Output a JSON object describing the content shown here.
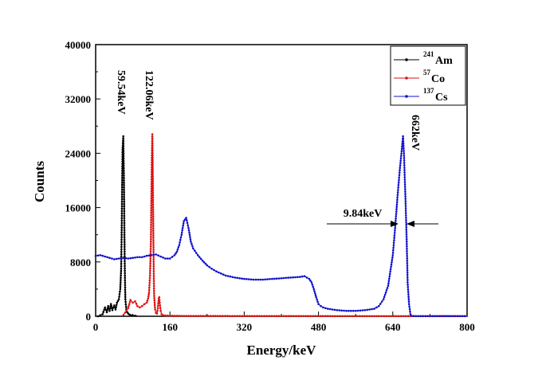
{
  "chart_data": {
    "type": "line",
    "xlabel": "Energy/keV",
    "ylabel": "Counts",
    "xlim": [
      0,
      800
    ],
    "ylim": [
      0,
      40000
    ],
    "xticks": [
      "0",
      "160",
      "320",
      "480",
      "640",
      "800"
    ],
    "yticks": [
      "0",
      "8000",
      "16000",
      "24000",
      "32000",
      "40000"
    ],
    "legend_position": "top-right",
    "legend": [
      {
        "mass": "241",
        "element": "Am",
        "color": "#000000"
      },
      {
        "mass": "57",
        "element": "Co",
        "color": "#dd1111"
      },
      {
        "mass": "137",
        "element": "Cs",
        "color": "#1111cc"
      }
    ],
    "series": [
      {
        "name": "241Am",
        "color": "#000000",
        "x": [
          5,
          15,
          20,
          24,
          27,
          30,
          33,
          36,
          40,
          43,
          46,
          50,
          53,
          55,
          56,
          57,
          58,
          59.5,
          61,
          62,
          63,
          64,
          66,
          68,
          70,
          73,
          76,
          80,
          90
        ],
        "y": [
          0,
          300,
          1300,
          600,
          1500,
          800,
          1800,
          900,
          1600,
          1000,
          2000,
          2500,
          4000,
          7000,
          12000,
          19000,
          24500,
          26500,
          20000,
          12000,
          6000,
          2500,
          1000,
          600,
          400,
          250,
          150,
          100,
          60
        ]
      },
      {
        "name": "57Co",
        "color": "#dd1111",
        "x": [
          60,
          70,
          75,
          80,
          85,
          90,
          95,
          100,
          105,
          110,
          113,
          115,
          117,
          119,
          120,
          121,
          122.06,
          123,
          124,
          125,
          126,
          128,
          130,
          132,
          134,
          136,
          137,
          138,
          140,
          142,
          145,
          150,
          160,
          200,
          300,
          400,
          500,
          600,
          700,
          800
        ],
        "y": [
          200,
          1200,
          2400,
          2000,
          2200,
          1500,
          1300,
          1500,
          1800,
          2000,
          2600,
          3500,
          6000,
          11000,
          17000,
          23000,
          26800,
          22000,
          14000,
          7000,
          3000,
          1000,
          500,
          400,
          1200,
          2600,
          2800,
          2000,
          800,
          300,
          150,
          100,
          80,
          50,
          40,
          30,
          30,
          20,
          20,
          20
        ]
      },
      {
        "name": "137Cs",
        "color": "#1111cc",
        "x": [
          0,
          10,
          20,
          30,
          40,
          50,
          60,
          70,
          80,
          90,
          100,
          110,
          120,
          130,
          140,
          150,
          160,
          170,
          175,
          180,
          185,
          190,
          195,
          200,
          205,
          210,
          220,
          230,
          240,
          250,
          260,
          270,
          280,
          300,
          320,
          340,
          360,
          380,
          400,
          420,
          440,
          450,
          460,
          465,
          470,
          475,
          480,
          485,
          490,
          500,
          520,
          540,
          560,
          580,
          600,
          610,
          620,
          630,
          640,
          645,
          650,
          655,
          660,
          662,
          664,
          667,
          670,
          672,
          675,
          678,
          680,
          685,
          700,
          720,
          750,
          800
        ],
        "y": [
          8900,
          9000,
          8800,
          8600,
          8400,
          8500,
          8600,
          8500,
          8600,
          8700,
          8700,
          8900,
          9000,
          9100,
          8800,
          8500,
          8500,
          9000,
          9500,
          10500,
          12000,
          14000,
          14500,
          13000,
          11000,
          10000,
          9000,
          8200,
          7500,
          7000,
          6600,
          6300,
          6000,
          5700,
          5500,
          5400,
          5400,
          5500,
          5600,
          5700,
          5800,
          5900,
          5500,
          5000,
          4000,
          2800,
          1800,
          1500,
          1300,
          1100,
          900,
          800,
          800,
          900,
          1100,
          1500,
          2500,
          4500,
          9000,
          13000,
          17500,
          21500,
          25000,
          26500,
          24000,
          18000,
          11000,
          5000,
          1800,
          300,
          80,
          30,
          20,
          20,
          20,
          20
        ]
      }
    ],
    "annotations": {
      "am_peak": "59.54keV",
      "co_peak": "122.06keV",
      "cs_peak": "662keV",
      "fwhm": "9.84keV"
    }
  }
}
